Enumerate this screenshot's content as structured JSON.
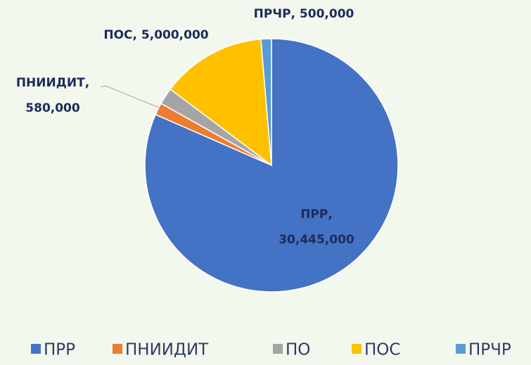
{
  "chart_data": {
    "type": "pie",
    "categories": [
      "ПРР",
      "ПНИИДИТ",
      "ПО",
      "ПОС",
      "ПРЧР"
    ],
    "values": [
      30445000,
      580000,
      800000,
      5000000,
      500000
    ],
    "value_labels": [
      "30,445,000",
      "580,000",
      null,
      "5,000,000",
      "500,000"
    ],
    "data_label_separator": ", ",
    "colors": [
      "#4472c4",
      "#ed7d31",
      "#a5a5a5",
      "#ffc000",
      "#5b9bd5"
    ],
    "legend": "bottom"
  }
}
